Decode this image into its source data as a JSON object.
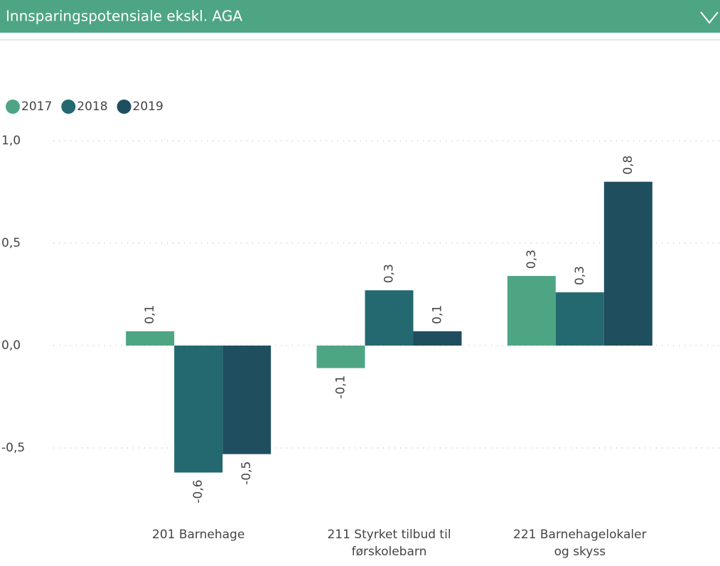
{
  "chart_data": {
    "type": "bar",
    "title": "Innsparingspotensiale ekskl. AGA",
    "categories": [
      "201 Barnehage",
      "211 Styrket tilbud til førskolebarn",
      "221 Barnehagelokaler og skyss"
    ],
    "series": [
      {
        "name": "2017",
        "color": "#4ea584",
        "values": [
          0.07,
          -0.11,
          0.34
        ],
        "value_labels": [
          "0,1",
          "-0,1",
          "0,3"
        ]
      },
      {
        "name": "2018",
        "color": "#23696f",
        "values": [
          -0.62,
          0.27,
          0.26
        ],
        "value_labels": [
          "-0,6",
          "0,3",
          "0,3"
        ]
      },
      {
        "name": "2019",
        "color": "#1f4e5f",
        "values": [
          -0.53,
          0.07,
          0.8
        ],
        "value_labels": [
          "-0,5",
          "0,1",
          "0,8"
        ]
      }
    ],
    "ylim": [
      -0.75,
      1.0
    ],
    "yticks": [
      {
        "value": -0.5,
        "label": "-0,5"
      },
      {
        "value": 0,
        "label": "0,0"
      },
      {
        "value": 0.5,
        "label": "0,5"
      },
      {
        "value": 1,
        "label": "1,0"
      }
    ],
    "grid": true,
    "legend": "top-left"
  }
}
